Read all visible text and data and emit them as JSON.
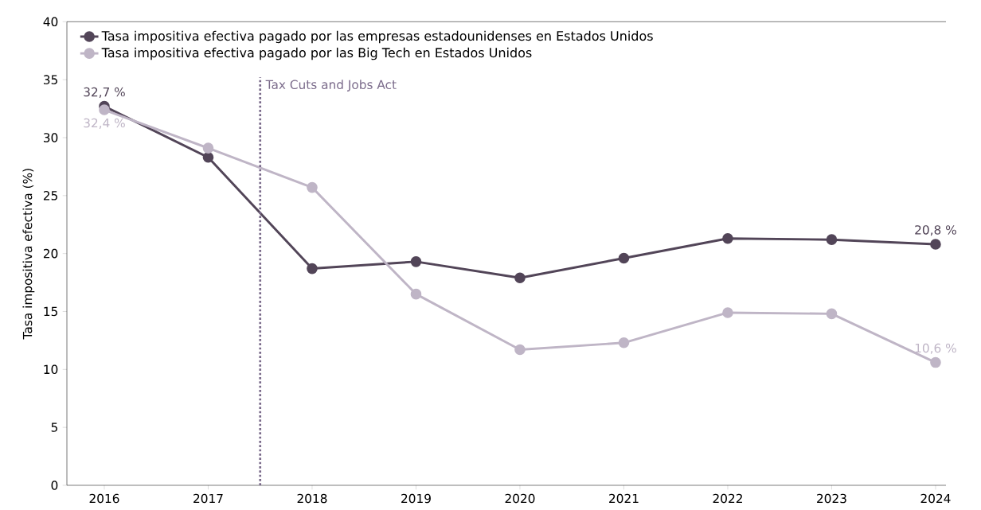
{
  "chart_data": {
    "type": "line",
    "ylabel": "Tasa impositiva efectiva (%)",
    "x": [
      2016,
      2017,
      2018,
      2019,
      2020,
      2021,
      2022,
      2023,
      2024
    ],
    "series": [
      {
        "name": "Tasa impositiva efectiva pagado por las empresas estadounidenses en Estados Unidos",
        "color": "#524558",
        "values": [
          32.7,
          28.3,
          18.7,
          19.3,
          17.9,
          19.6,
          21.3,
          21.2,
          20.8
        ],
        "value_labels": [
          "32,7 %",
          null,
          null,
          null,
          null,
          null,
          null,
          null,
          "20,8 %"
        ]
      },
      {
        "name": "Tasa impositiva efectiva pagado por las Big Tech en Estados Unidos",
        "color": "#bfb5c6",
        "values": [
          32.4,
          29.1,
          25.7,
          16.5,
          11.7,
          12.3,
          14.9,
          14.8,
          10.6
        ],
        "value_labels": [
          "32,4 %",
          null,
          null,
          null,
          null,
          null,
          null,
          null,
          "10,6 %"
        ]
      }
    ],
    "xlim": [
      2015.64,
      2024.1
    ],
    "ylim": [
      0,
      40
    ],
    "xticks": [
      2016,
      2017,
      2018,
      2019,
      2020,
      2021,
      2022,
      2023,
      2024
    ],
    "yticks": [
      0,
      5,
      10,
      15,
      20,
      25,
      30,
      35,
      40
    ],
    "ref_lines": [
      {
        "axis": "x",
        "value": 2017.5,
        "label": "Tax Cuts and Jobs Act",
        "color": "#7a6a8a",
        "line_style": "dotted"
      }
    ],
    "grid": false,
    "legend": "top left",
    "marker": "circle",
    "line_style": "solid"
  }
}
